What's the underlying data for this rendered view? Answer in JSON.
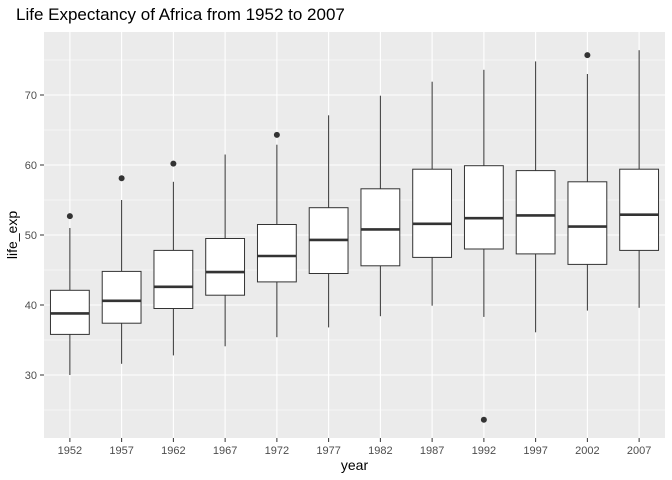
{
  "chart_data": {
    "type": "boxplot",
    "title": "Life Expectancy of Africa from 1952 to 2007",
    "xlabel": "year",
    "ylabel": "life_exp",
    "ylim": [
      21,
      79
    ],
    "yticks": [
      30,
      40,
      50,
      60,
      70
    ],
    "grid": true,
    "legend": "none",
    "colors": {
      "panel": "#ebebeb",
      "grid_major": "#ffffff",
      "box_fill": "#ffffff",
      "box_stroke": "#333333",
      "outlier": "#333333"
    },
    "categories": [
      "1952",
      "1957",
      "1962",
      "1967",
      "1972",
      "1977",
      "1982",
      "1987",
      "1992",
      "1997",
      "2002",
      "2007"
    ],
    "boxes": [
      {
        "year": "1952",
        "whisker_low": 30.0,
        "q1": 35.8,
        "median": 38.8,
        "q3": 42.1,
        "whisker_high": 51.0,
        "outliers": [
          52.7
        ]
      },
      {
        "year": "1957",
        "whisker_low": 31.6,
        "q1": 37.4,
        "median": 40.6,
        "q3": 44.8,
        "whisker_high": 55.0,
        "outliers": [
          58.1
        ]
      },
      {
        "year": "1962",
        "whisker_low": 32.8,
        "q1": 39.5,
        "median": 42.6,
        "q3": 47.8,
        "whisker_high": 57.6,
        "outliers": [
          60.2
        ]
      },
      {
        "year": "1967",
        "whisker_low": 34.1,
        "q1": 41.4,
        "median": 44.7,
        "q3": 49.5,
        "whisker_high": 61.5,
        "outliers": []
      },
      {
        "year": "1972",
        "whisker_low": 35.4,
        "q1": 43.3,
        "median": 47.0,
        "q3": 51.5,
        "whisker_high": 62.9,
        "outliers": [
          64.3
        ]
      },
      {
        "year": "1977",
        "whisker_low": 36.8,
        "q1": 44.5,
        "median": 49.3,
        "q3": 53.9,
        "whisker_high": 67.1,
        "outliers": []
      },
      {
        "year": "1982",
        "whisker_low": 38.4,
        "q1": 45.6,
        "median": 50.8,
        "q3": 56.6,
        "whisker_high": 69.9,
        "outliers": []
      },
      {
        "year": "1987",
        "whisker_low": 39.9,
        "q1": 46.8,
        "median": 51.6,
        "q3": 59.4,
        "whisker_high": 71.9,
        "outliers": []
      },
      {
        "year": "1992",
        "whisker_low": 38.3,
        "q1": 48.0,
        "median": 52.4,
        "q3": 59.9,
        "whisker_high": 73.6,
        "outliers": [
          23.6
        ]
      },
      {
        "year": "1997",
        "whisker_low": 36.1,
        "q1": 47.3,
        "median": 52.8,
        "q3": 59.2,
        "whisker_high": 74.8,
        "outliers": []
      },
      {
        "year": "2002",
        "whisker_low": 39.2,
        "q1": 45.8,
        "median": 51.2,
        "q3": 57.6,
        "whisker_high": 73.0,
        "outliers": [
          75.7
        ]
      },
      {
        "year": "2007",
        "whisker_low": 39.6,
        "q1": 47.8,
        "median": 52.9,
        "q3": 59.4,
        "whisker_high": 76.4,
        "outliers": []
      }
    ]
  }
}
